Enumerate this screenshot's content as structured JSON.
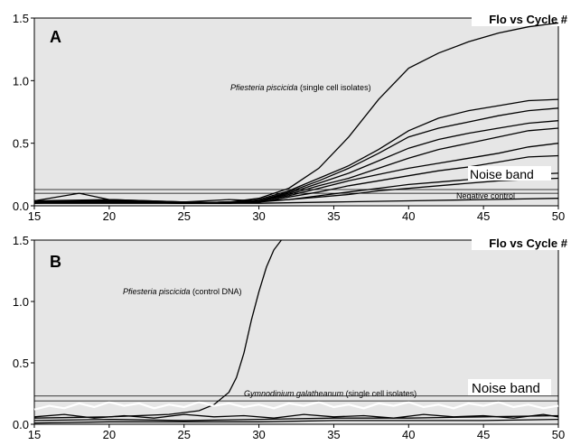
{
  "chart_data": [
    {
      "type": "line",
      "panel_label": "A",
      "title": "Flo vs Cycle #",
      "xlim": [
        15,
        50
      ],
      "ylim": [
        0,
        1.5
      ],
      "x_ticks": [
        15,
        20,
        25,
        30,
        35,
        40,
        45,
        50
      ],
      "y_ticks": [
        0.0,
        0.5,
        1.0,
        1.5
      ],
      "y_tick_labels": [
        "0.0",
        "0.5",
        "1.0",
        "1.5"
      ],
      "grid": false,
      "noise_band": [
        0.1,
        0.13
      ],
      "annotations": {
        "series_label_italic": "Pfiesteria piscicida",
        "series_label_rest": " (single cell isolates)",
        "noise_band_label": "Noise band",
        "negative_control_label": "Negative control"
      },
      "series": [
        {
          "x": [
            15,
            20,
            25,
            28,
            30,
            32,
            34,
            36,
            38,
            40,
            42,
            44,
            46,
            48,
            50
          ],
          "y": [
            0.03,
            0.05,
            0.02,
            0.03,
            0.06,
            0.14,
            0.3,
            0.55,
            0.85,
            1.1,
            1.22,
            1.31,
            1.38,
            1.43,
            1.46
          ]
        },
        {
          "x": [
            15,
            20,
            25,
            28,
            30,
            32,
            34,
            36,
            38,
            40,
            42,
            44,
            46,
            48,
            50
          ],
          "y": [
            0.03,
            0.04,
            0.03,
            0.02,
            0.05,
            0.12,
            0.22,
            0.32,
            0.45,
            0.6,
            0.7,
            0.76,
            0.8,
            0.84,
            0.85
          ]
        },
        {
          "x": [
            15,
            20,
            25,
            28,
            30,
            32,
            34,
            36,
            38,
            40,
            42,
            44,
            46,
            48,
            50
          ],
          "y": [
            0.04,
            0.03,
            0.02,
            0.03,
            0.04,
            0.11,
            0.2,
            0.3,
            0.42,
            0.55,
            0.62,
            0.67,
            0.72,
            0.76,
            0.78
          ]
        },
        {
          "x": [
            15,
            20,
            25,
            28,
            30,
            32,
            34,
            36,
            38,
            40,
            42,
            44,
            46,
            48,
            50
          ],
          "y": [
            0.02,
            0.04,
            0.03,
            0.02,
            0.04,
            0.1,
            0.18,
            0.26,
            0.36,
            0.46,
            0.53,
            0.58,
            0.62,
            0.66,
            0.68
          ]
        },
        {
          "x": [
            15,
            20,
            25,
            28,
            30,
            32,
            34,
            36,
            38,
            40,
            42,
            44,
            46,
            48,
            50
          ],
          "y": [
            0.03,
            0.03,
            0.02,
            0.03,
            0.04,
            0.09,
            0.16,
            0.22,
            0.3,
            0.38,
            0.45,
            0.5,
            0.55,
            0.6,
            0.62
          ]
        },
        {
          "x": [
            15,
            20,
            25,
            28,
            30,
            32,
            34,
            36,
            38,
            40,
            42,
            44,
            46,
            48,
            50
          ],
          "y": [
            0.04,
            0.05,
            0.03,
            0.02,
            0.04,
            0.08,
            0.14,
            0.2,
            0.25,
            0.3,
            0.34,
            0.38,
            0.42,
            0.47,
            0.5
          ]
        },
        {
          "x": [
            15,
            20,
            25,
            28,
            30,
            32,
            34,
            36,
            38,
            40,
            42,
            44,
            46,
            48,
            50
          ],
          "y": [
            0.03,
            0.04,
            0.02,
            0.03,
            0.03,
            0.07,
            0.11,
            0.16,
            0.2,
            0.24,
            0.28,
            0.31,
            0.35,
            0.39,
            0.4
          ]
        },
        {
          "x": [
            15,
            20,
            25,
            28,
            30,
            32,
            34,
            36,
            38,
            40,
            42,
            44,
            46,
            48,
            50
          ],
          "y": [
            0.03,
            0.03,
            0.02,
            0.02,
            0.03,
            0.05,
            0.08,
            0.11,
            0.14,
            0.17,
            0.19,
            0.21,
            0.23,
            0.25,
            0.26
          ]
        },
        {
          "x": [
            15,
            18,
            20,
            25,
            28,
            30,
            32,
            34,
            36,
            38,
            40,
            42,
            44,
            46,
            48,
            50
          ],
          "y": [
            0.04,
            0.1,
            0.05,
            0.03,
            0.05,
            0.04,
            0.05,
            0.07,
            0.09,
            0.12,
            0.14,
            0.16,
            0.18,
            0.2,
            0.21,
            0.22
          ]
        },
        {
          "x": [
            15,
            20,
            25,
            30,
            35,
            40,
            45,
            50
          ],
          "y": [
            0.02,
            0.02,
            0.02,
            0.02,
            0.03,
            0.04,
            0.05,
            0.06
          ]
        }
      ]
    },
    {
      "type": "line",
      "panel_label": "B",
      "title": "Flo vs Cycle #",
      "xlim": [
        15,
        50
      ],
      "ylim": [
        0,
        1.5
      ],
      "x_ticks": [
        15,
        20,
        25,
        30,
        35,
        40,
        45,
        50
      ],
      "y_ticks": [
        0.0,
        0.5,
        1.0,
        1.5
      ],
      "y_tick_labels": [
        "0.0",
        "0.5",
        "1.0",
        "1.5"
      ],
      "grid": false,
      "noise_band": [
        0.19,
        0.23
      ],
      "annotations": {
        "series_label_italic": "Pfiesteria piscicida",
        "series_label_rest": " (control DNA)",
        "series2_label_italic": "Gymnodinium galatheanum",
        "series2_label_rest": " (single cell isolates)",
        "noise_band_label": "Noise band"
      },
      "series": [
        {
          "x": [
            15,
            20,
            24,
            26,
            27,
            28,
            28.5,
            29,
            29.5,
            30,
            30.5,
            31,
            31.5
          ],
          "y": [
            0.05,
            0.06,
            0.08,
            0.11,
            0.16,
            0.26,
            0.38,
            0.58,
            0.85,
            1.08,
            1.28,
            1.42,
            1.5
          ]
        },
        {
          "x": [
            15,
            16,
            17,
            18,
            19,
            20,
            21,
            22,
            23,
            24,
            25,
            26,
            27,
            28,
            29,
            30,
            31,
            32,
            33,
            34,
            35,
            36,
            37,
            38,
            39,
            40,
            41,
            42,
            43,
            44,
            45,
            46,
            47,
            48,
            49,
            50
          ],
          "y": [
            0.12,
            0.15,
            0.13,
            0.17,
            0.14,
            0.18,
            0.15,
            0.17,
            0.13,
            0.16,
            0.14,
            0.18,
            0.15,
            0.17,
            0.14,
            0.16,
            0.13,
            0.17,
            0.15,
            0.18,
            0.14,
            0.16,
            0.13,
            0.17,
            0.15,
            0.18,
            0.14,
            0.16,
            0.13,
            0.17,
            0.15,
            0.18,
            0.14,
            0.16,
            0.13,
            0.15
          ]
        },
        {
          "x": [
            15,
            17,
            19,
            21,
            23,
            25,
            27,
            29,
            31,
            33,
            35,
            37,
            39,
            41,
            43,
            45,
            47,
            49,
            50
          ],
          "y": [
            0.06,
            0.08,
            0.05,
            0.07,
            0.05,
            0.08,
            0.06,
            0.07,
            0.05,
            0.08,
            0.06,
            0.07,
            0.05,
            0.08,
            0.06,
            0.07,
            0.05,
            0.08,
            0.06
          ]
        },
        {
          "x": [
            15,
            20,
            25,
            30,
            35,
            40,
            45,
            50
          ],
          "y": [
            0.03,
            0.04,
            0.03,
            0.04,
            0.05,
            0.05,
            0.06,
            0.07
          ]
        },
        {
          "x": [
            15,
            20,
            25,
            30,
            35,
            40,
            45,
            50
          ],
          "y": [
            0.01,
            0.02,
            0.02,
            0.02,
            0.03,
            0.03,
            0.03,
            0.04
          ]
        }
      ]
    }
  ]
}
